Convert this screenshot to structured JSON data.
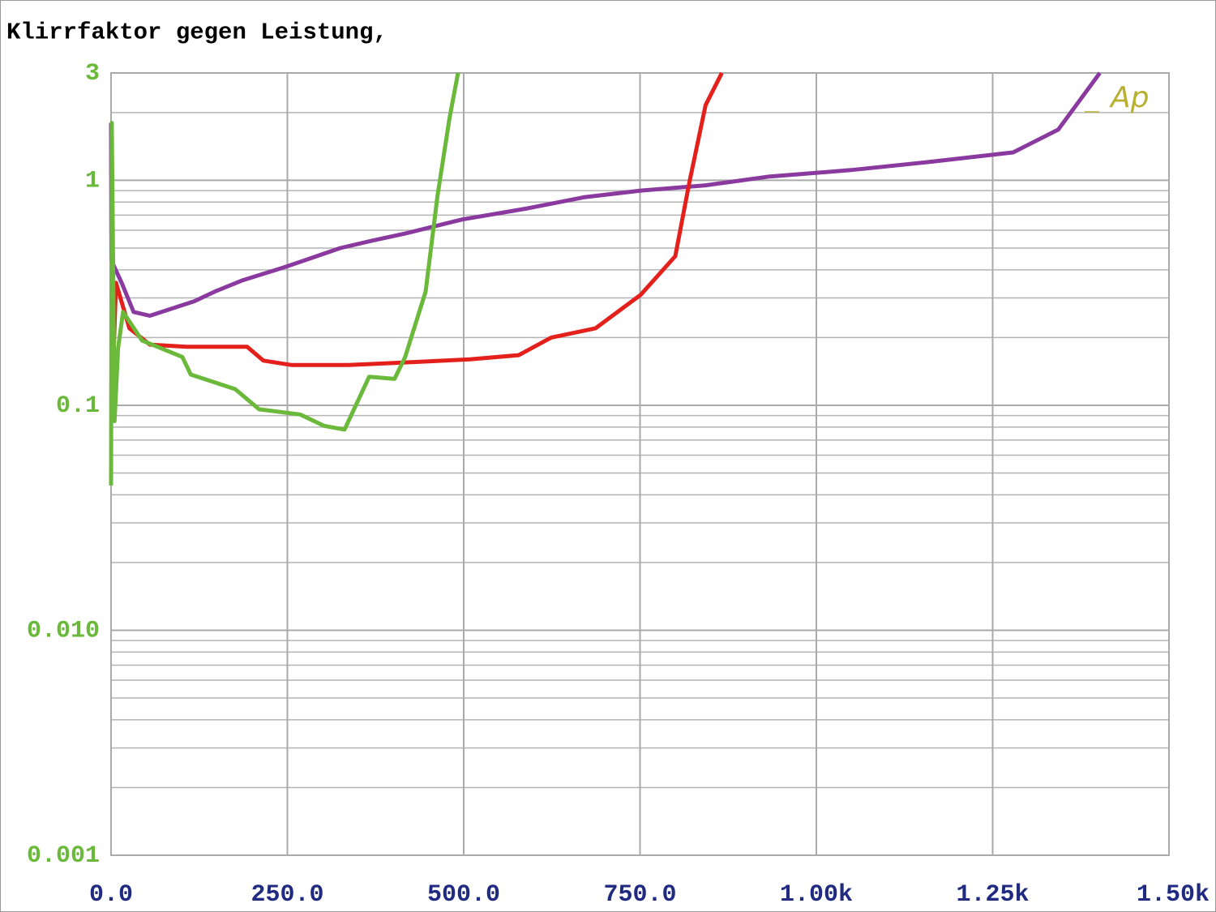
{
  "chart_data": {
    "type": "line",
    "title": "Klirrfaktor gegen Leistung,",
    "annotation": "Ap",
    "log_y": true,
    "grid": true,
    "xlim": [
      0,
      1500
    ],
    "ylim": [
      0.001,
      3
    ],
    "xticks": [
      {
        "value": 0,
        "label": "0.0"
      },
      {
        "value": 250,
        "label": "250.0"
      },
      {
        "value": 500,
        "label": "500.0"
      },
      {
        "value": 750,
        "label": "750.0"
      },
      {
        "value": 1000,
        "label": "1.00k"
      },
      {
        "value": 1250,
        "label": "1.25k"
      },
      {
        "value": 1500,
        "label": "1.50k"
      }
    ],
    "yticks": [
      3,
      1,
      0.1,
      {
        "value": 0.01,
        "label": "0.010"
      },
      0.001
    ],
    "yminorticks": [
      2,
      0.9,
      0.8,
      0.7,
      0.6,
      0.5,
      0.4,
      0.3,
      0.2,
      0.09,
      0.08,
      0.07,
      0.06,
      0.05,
      0.04,
      0.03,
      0.02,
      0.009,
      0.008,
      0.007,
      0.006,
      0.005,
      0.004,
      0.003,
      0.002
    ],
    "series": [
      {
        "color": "#8a3a9e",
        "x": [
          0,
          0.5,
          15,
          32,
          55,
          118,
          147,
          187,
          245,
          325,
          371,
          417,
          498,
          590,
          670,
          751,
          843,
          934,
          1049,
          1164,
          1279,
          1343,
          1402
        ],
        "values": [
          1.8,
          0.44,
          0.35,
          0.26,
          0.25,
          0.29,
          0.32,
          0.36,
          0.41,
          0.5,
          0.54,
          0.58,
          0.67,
          0.75,
          0.84,
          0.9,
          0.95,
          1.04,
          1.11,
          1.21,
          1.33,
          1.68,
          3
        ]
      },
      {
        "color": "#e3201b",
        "x": [
          3,
          7,
          26,
          55,
          107,
          193,
          216,
          256,
          337,
          417,
          509,
          578,
          624,
          687,
          751,
          800,
          820,
          843,
          866
        ],
        "values": [
          0.15,
          0.35,
          0.22,
          0.186,
          0.182,
          0.182,
          0.158,
          0.151,
          0.151,
          0.155,
          0.16,
          0.167,
          0.2,
          0.22,
          0.31,
          0.46,
          0.98,
          2.16,
          3
        ]
      },
      {
        "color": "#6ab93a",
        "x": [
          0,
          1,
          5,
          10,
          17,
          44,
          101,
          113,
          176,
          210,
          268,
          302,
          331,
          366,
          402,
          417,
          446,
          463,
          480,
          492
        ],
        "values": [
          0.044,
          1.8,
          0.085,
          0.18,
          0.26,
          0.194,
          0.164,
          0.137,
          0.118,
          0.096,
          0.091,
          0.081,
          0.078,
          0.134,
          0.131,
          0.164,
          0.32,
          0.86,
          1.9,
          3
        ]
      }
    ]
  }
}
